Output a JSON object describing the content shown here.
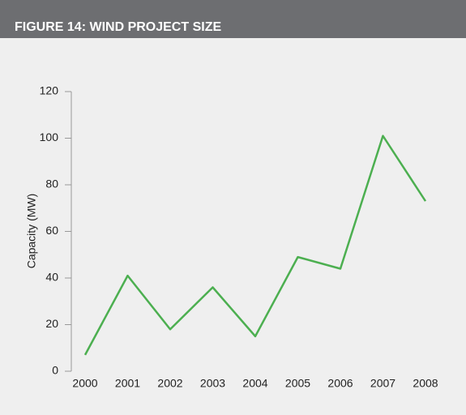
{
  "chart_data": {
    "type": "line",
    "title": "FIGURE 14: WIND PROJECT SIZE",
    "y_label": "Capacity (MW)",
    "categories": [
      "2000",
      "2001",
      "2002",
      "2003",
      "2004",
      "2005",
      "2006",
      "2007",
      "2008"
    ],
    "values": [
      7,
      41,
      18,
      36,
      15,
      49,
      44,
      101,
      73
    ],
    "color": "#4caf50",
    "ylim": [
      0,
      120
    ],
    "yticks": [
      0,
      20,
      40,
      60,
      80,
      100,
      120
    ],
    "grid": false
  }
}
